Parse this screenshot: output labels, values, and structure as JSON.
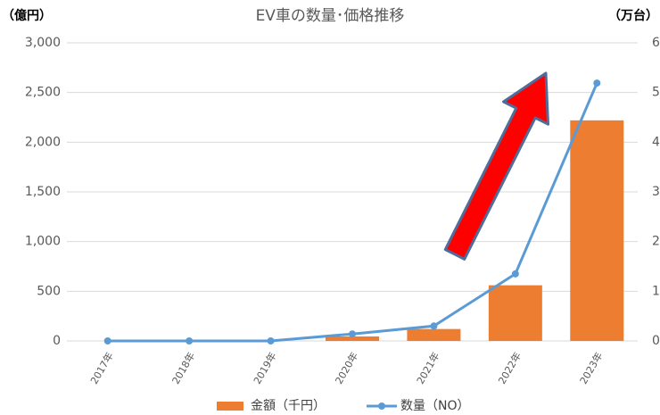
{
  "chart_data": {
    "type": "bar",
    "title": "EV車の数量･価格推移",
    "y_label": "（億円）",
    "y2_label": "（万台）",
    "categories": [
      "2017年",
      "2018年",
      "2019年",
      "2020年",
      "2021年",
      "2022年",
      "2023年"
    ],
    "series": [
      {
        "name": "金額（千円）",
        "type": "bar",
        "color": "#ed7d31",
        "values": [
          0,
          0,
          0,
          45,
          120,
          560,
          2220
        ]
      },
      {
        "name": "数量（NO）",
        "type": "line",
        "axis": "y2",
        "color": "#5b9bd5",
        "values": [
          0,
          0,
          0,
          0.14,
          0.3,
          1.35,
          5.19
        ]
      }
    ],
    "ylim": [
      0,
      3000
    ],
    "yticks": [
      0,
      500,
      {
        "value": 1000,
        "label": "1,000"
      },
      {
        "value": 1500,
        "label": "1,500"
      },
      {
        "value": 2000,
        "label": "2,000"
      },
      {
        "value": 2500,
        "label": "2,500"
      },
      {
        "value": 3000,
        "label": "3,000"
      }
    ],
    "y2lim": [
      0,
      6
    ],
    "y2ticks": [
      0,
      1,
      2,
      3,
      4,
      5,
      6
    ],
    "grid": true,
    "legend": "bottom"
  }
}
